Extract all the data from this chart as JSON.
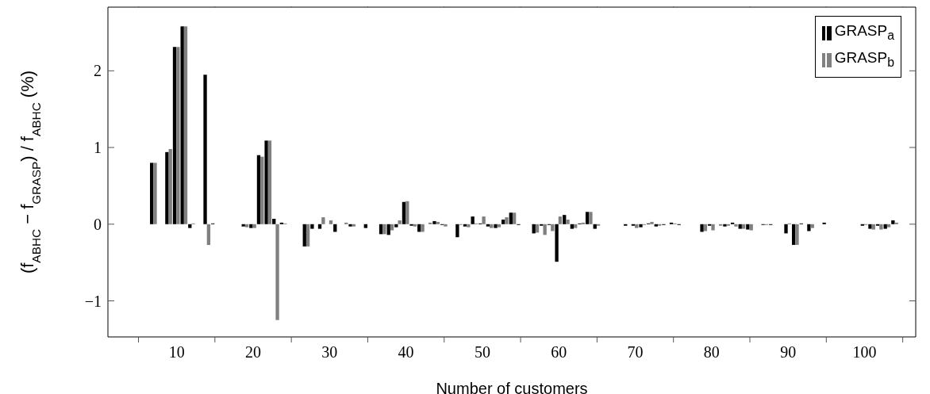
{
  "chart_data": {
    "type": "bar",
    "xlabel": "Number of customers",
    "ylabel": "(f$_{ABHC}$ − f$_{GRASP}$) / f$_{ABHC}$ (%)",
    "x": [
      6,
      7,
      8,
      9,
      10,
      11,
      12,
      13,
      14,
      15,
      16,
      17,
      18,
      19,
      20,
      21,
      22,
      23,
      24,
      25,
      26,
      27,
      28,
      29,
      30,
      31,
      32,
      33,
      34,
      35,
      36,
      37,
      38,
      39,
      40,
      41,
      42,
      43,
      44,
      45,
      46,
      47,
      48,
      49,
      50,
      51,
      52,
      53,
      54,
      55,
      56,
      57,
      58,
      59,
      60,
      61,
      62,
      63,
      64,
      65,
      66,
      67,
      68,
      69,
      70,
      71,
      72,
      73,
      74,
      75,
      76,
      77,
      78,
      79,
      80,
      81,
      82,
      83,
      84,
      85,
      86,
      87,
      88,
      89,
      90,
      91,
      92,
      93,
      94,
      95,
      96,
      97,
      98,
      99,
      100,
      101,
      102,
      103,
      104
    ],
    "series": [
      {
        "name": "GRASP$_{a}$",
        "color": "#000000",
        "values": [
          0,
          0.8,
          0,
          0.94,
          2.31,
          2.58,
          -0.05,
          0,
          1.95,
          0.01,
          0,
          0,
          0,
          -0.03,
          -0.05,
          0.9,
          1.09,
          0.07,
          0.02,
          0,
          0,
          -0.29,
          -0.06,
          -0.06,
          0,
          -0.1,
          0,
          -0.03,
          0,
          -0.05,
          0,
          -0.13,
          -0.14,
          -0.04,
          0.29,
          -0.02,
          -0.1,
          0,
          0.04,
          -0.01,
          0,
          -0.17,
          -0.03,
          0.1,
          0.01,
          -0.03,
          -0.05,
          0.06,
          0.15,
          -0.01,
          0,
          -0.12,
          -0.02,
          -0.01,
          -0.49,
          0.12,
          -0.06,
          0.01,
          0.16,
          -0.06,
          0,
          0,
          0,
          -0.02,
          -0.02,
          -0.04,
          0.01,
          -0.03,
          -0.01,
          0.02,
          -0.01,
          0,
          0,
          -0.1,
          -0.02,
          0,
          -0.03,
          0.02,
          -0.06,
          -0.07,
          0,
          -0.01,
          -0.01,
          0,
          -0.12,
          -0.27,
          0.01,
          -0.09,
          0,
          0.02,
          0,
          0,
          0,
          0,
          -0.02,
          -0.06,
          -0.02,
          -0.06,
          0.05
        ]
      },
      {
        "name": "GRASP$_{b}$",
        "color": "#808080",
        "values": [
          0,
          0.8,
          0,
          0.98,
          2.31,
          2.58,
          0.01,
          0,
          -0.27,
          0,
          0,
          0,
          0,
          -0.04,
          -0.05,
          0.88,
          1.09,
          -1.25,
          0.01,
          0,
          0,
          -0.29,
          0,
          0.09,
          0.05,
          0,
          0.02,
          -0.03,
          0,
          0,
          0,
          -0.13,
          -0.08,
          0.05,
          0.3,
          -0.03,
          -0.1,
          0.02,
          0.03,
          -0.03,
          0,
          -0.01,
          -0.04,
          0.01,
          0.1,
          -0.05,
          -0.04,
          0.09,
          0.15,
          0,
          0,
          -0.11,
          -0.14,
          -0.09,
          0.1,
          0.06,
          -0.05,
          0.02,
          0.16,
          -0.02,
          0,
          0,
          0,
          0,
          -0.05,
          -0.01,
          0.03,
          -0.02,
          0,
          0.01,
          0,
          0,
          0,
          -0.09,
          -0.08,
          -0.02,
          -0.02,
          -0.03,
          -0.06,
          -0.08,
          0,
          -0.01,
          0,
          0,
          0.01,
          -0.27,
          0,
          -0.05,
          0,
          0,
          0,
          0,
          0,
          0,
          -0.01,
          -0.07,
          -0.07,
          -0.04,
          0.02
        ]
      }
    ],
    "xlim": [
      1,
      106.7
    ],
    "xticks": [
      {
        "value": 5,
        "label": null
      },
      10,
      {
        "value": 15,
        "label": null
      },
      20,
      {
        "value": 25,
        "label": null
      },
      30,
      {
        "value": 35,
        "label": null
      },
      40,
      {
        "value": 45,
        "label": null
      },
      50,
      {
        "value": 55,
        "label": null
      },
      60,
      {
        "value": 65,
        "label": null
      },
      70,
      {
        "value": 75,
        "label": null
      },
      80,
      {
        "value": 85,
        "label": null
      },
      90,
      {
        "value": 95,
        "label": null
      },
      100,
      {
        "value": 105,
        "label": null
      }
    ],
    "ylim": [
      -1.47,
      2.83
    ],
    "yticks": [
      {
        "value": -1,
        "label": "−1"
      },
      0,
      1,
      2
    ],
    "legend": "top right"
  }
}
